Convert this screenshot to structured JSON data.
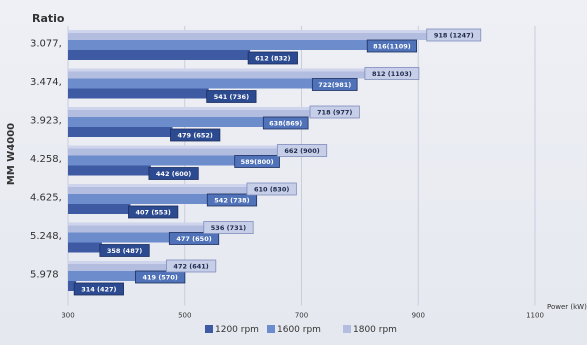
{
  "chart_data": {
    "type": "bar",
    "orientation": "horizontal",
    "title": "Ratio",
    "ylabel": "MM W4000",
    "xlabel": "Power (kW)",
    "categories": [
      "3.077,",
      "3.474,",
      "3.923,",
      "4.258,",
      "4.625,",
      "5.248,",
      "5.978"
    ],
    "xlim": [
      300,
      1100
    ],
    "xticks": [
      300,
      500,
      700,
      900,
      1100
    ],
    "grid": true,
    "legend_position": "bottom",
    "series": [
      {
        "name": "1200 rpm",
        "color": "#3d5aa3",
        "values": [
          612,
          541,
          479,
          442,
          407,
          358,
          314
        ],
        "labels": [
          "612 (832)",
          "541 (736)",
          "479 (652)",
          "442 (600)",
          "407 (553)",
          "358 (487)",
          "314 (427)"
        ]
      },
      {
        "name": "1600 rpm",
        "color": "#6d8ccb",
        "values": [
          816,
          722,
          638,
          589,
          542,
          477,
          419
        ],
        "labels": [
          "816(1109)",
          "722(981)",
          "638(869)",
          "589(800)",
          "542 (738)",
          "477 (650)",
          "419 (570)"
        ]
      },
      {
        "name": "1800 rpm",
        "color": "#b3bde0",
        "values": [
          918,
          812,
          718,
          662,
          610,
          536,
          472
        ],
        "labels": [
          "918 (1247)",
          "812 (1103)",
          "718 (977)",
          "662 (900)",
          "610 (830)",
          "536 (731)",
          "472 (641)"
        ]
      }
    ]
  }
}
